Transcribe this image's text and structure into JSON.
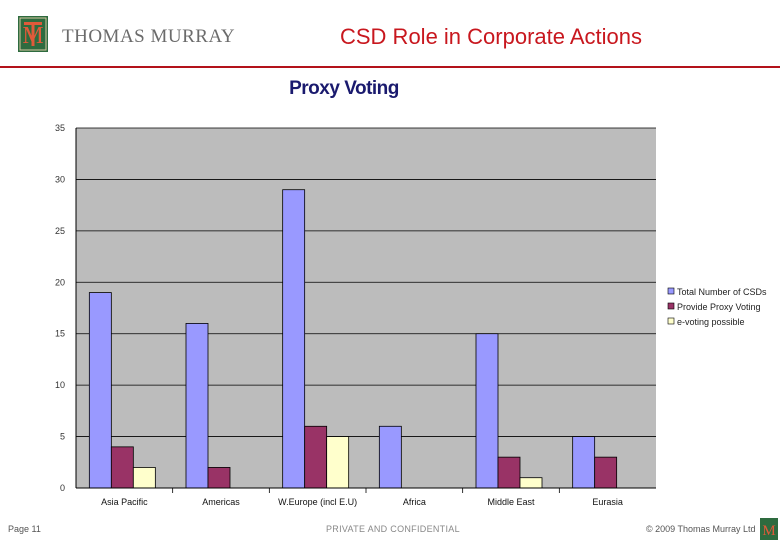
{
  "header": {
    "brand": "THOMAS MURRAY",
    "slide_title": "CSD Role in Corporate Actions"
  },
  "footer": {
    "page": "Page 11",
    "confidential": "PRIVATE AND CONFIDENTIAL",
    "copyright": "© 2009 Thomas Murray Ltd"
  },
  "colors": {
    "brand_red": "#c8171e",
    "logo_green": "#2e6b3f",
    "plot_bg": "#bcbcbc"
  },
  "chart_data": {
    "type": "bar",
    "title": "Proxy Voting",
    "categories": [
      "Asia Pacific",
      "Americas",
      "W.Europe (incl E.U)",
      "Africa",
      "Middle East",
      "Eurasia"
    ],
    "series": [
      {
        "name": "Total Number of CSDs",
        "color": "#9999ff",
        "values": [
          19,
          16,
          29,
          6,
          15,
          5
        ]
      },
      {
        "name": "Provide Proxy Voting",
        "color": "#993366",
        "values": [
          4,
          2,
          6,
          0,
          3,
          3
        ]
      },
      {
        "name": "e-voting possible",
        "color": "#ffffcc",
        "values": [
          2,
          0,
          5,
          0,
          1,
          0
        ]
      }
    ],
    "ylim": [
      0,
      35
    ],
    "yticks": [
      0,
      5,
      10,
      15,
      20,
      25,
      30,
      35
    ],
    "xlabel": "",
    "ylabel": "",
    "grid": true,
    "legend": "right"
  }
}
